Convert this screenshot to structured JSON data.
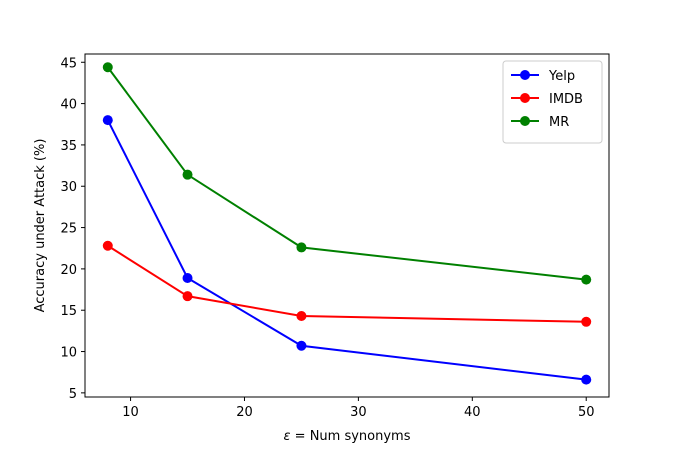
{
  "chart_data": {
    "type": "line",
    "x": [
      8,
      15,
      25,
      50
    ],
    "xlabel_symbol": "ε",
    "xlabel_rest": " = Num synonyms",
    "ylabel": "Accuracy under Attack (%)",
    "xlim": [
      6,
      52
    ],
    "ylim": [
      4.5,
      46
    ],
    "xticks": [
      10,
      20,
      30,
      40,
      50
    ],
    "yticks": [
      5,
      10,
      15,
      20,
      25,
      30,
      35,
      40,
      45
    ],
    "grid": false,
    "legend_position": "top-right",
    "series": [
      {
        "name": "Yelp",
        "color": "#0000ff",
        "values": [
          38.0,
          18.9,
          10.7,
          6.6
        ]
      },
      {
        "name": "IMDB",
        "color": "#ff0000",
        "values": [
          22.8,
          16.7,
          14.3,
          13.6
        ]
      },
      {
        "name": "MR",
        "color": "#008000",
        "values": [
          44.4,
          31.4,
          22.6,
          18.7
        ]
      }
    ]
  }
}
